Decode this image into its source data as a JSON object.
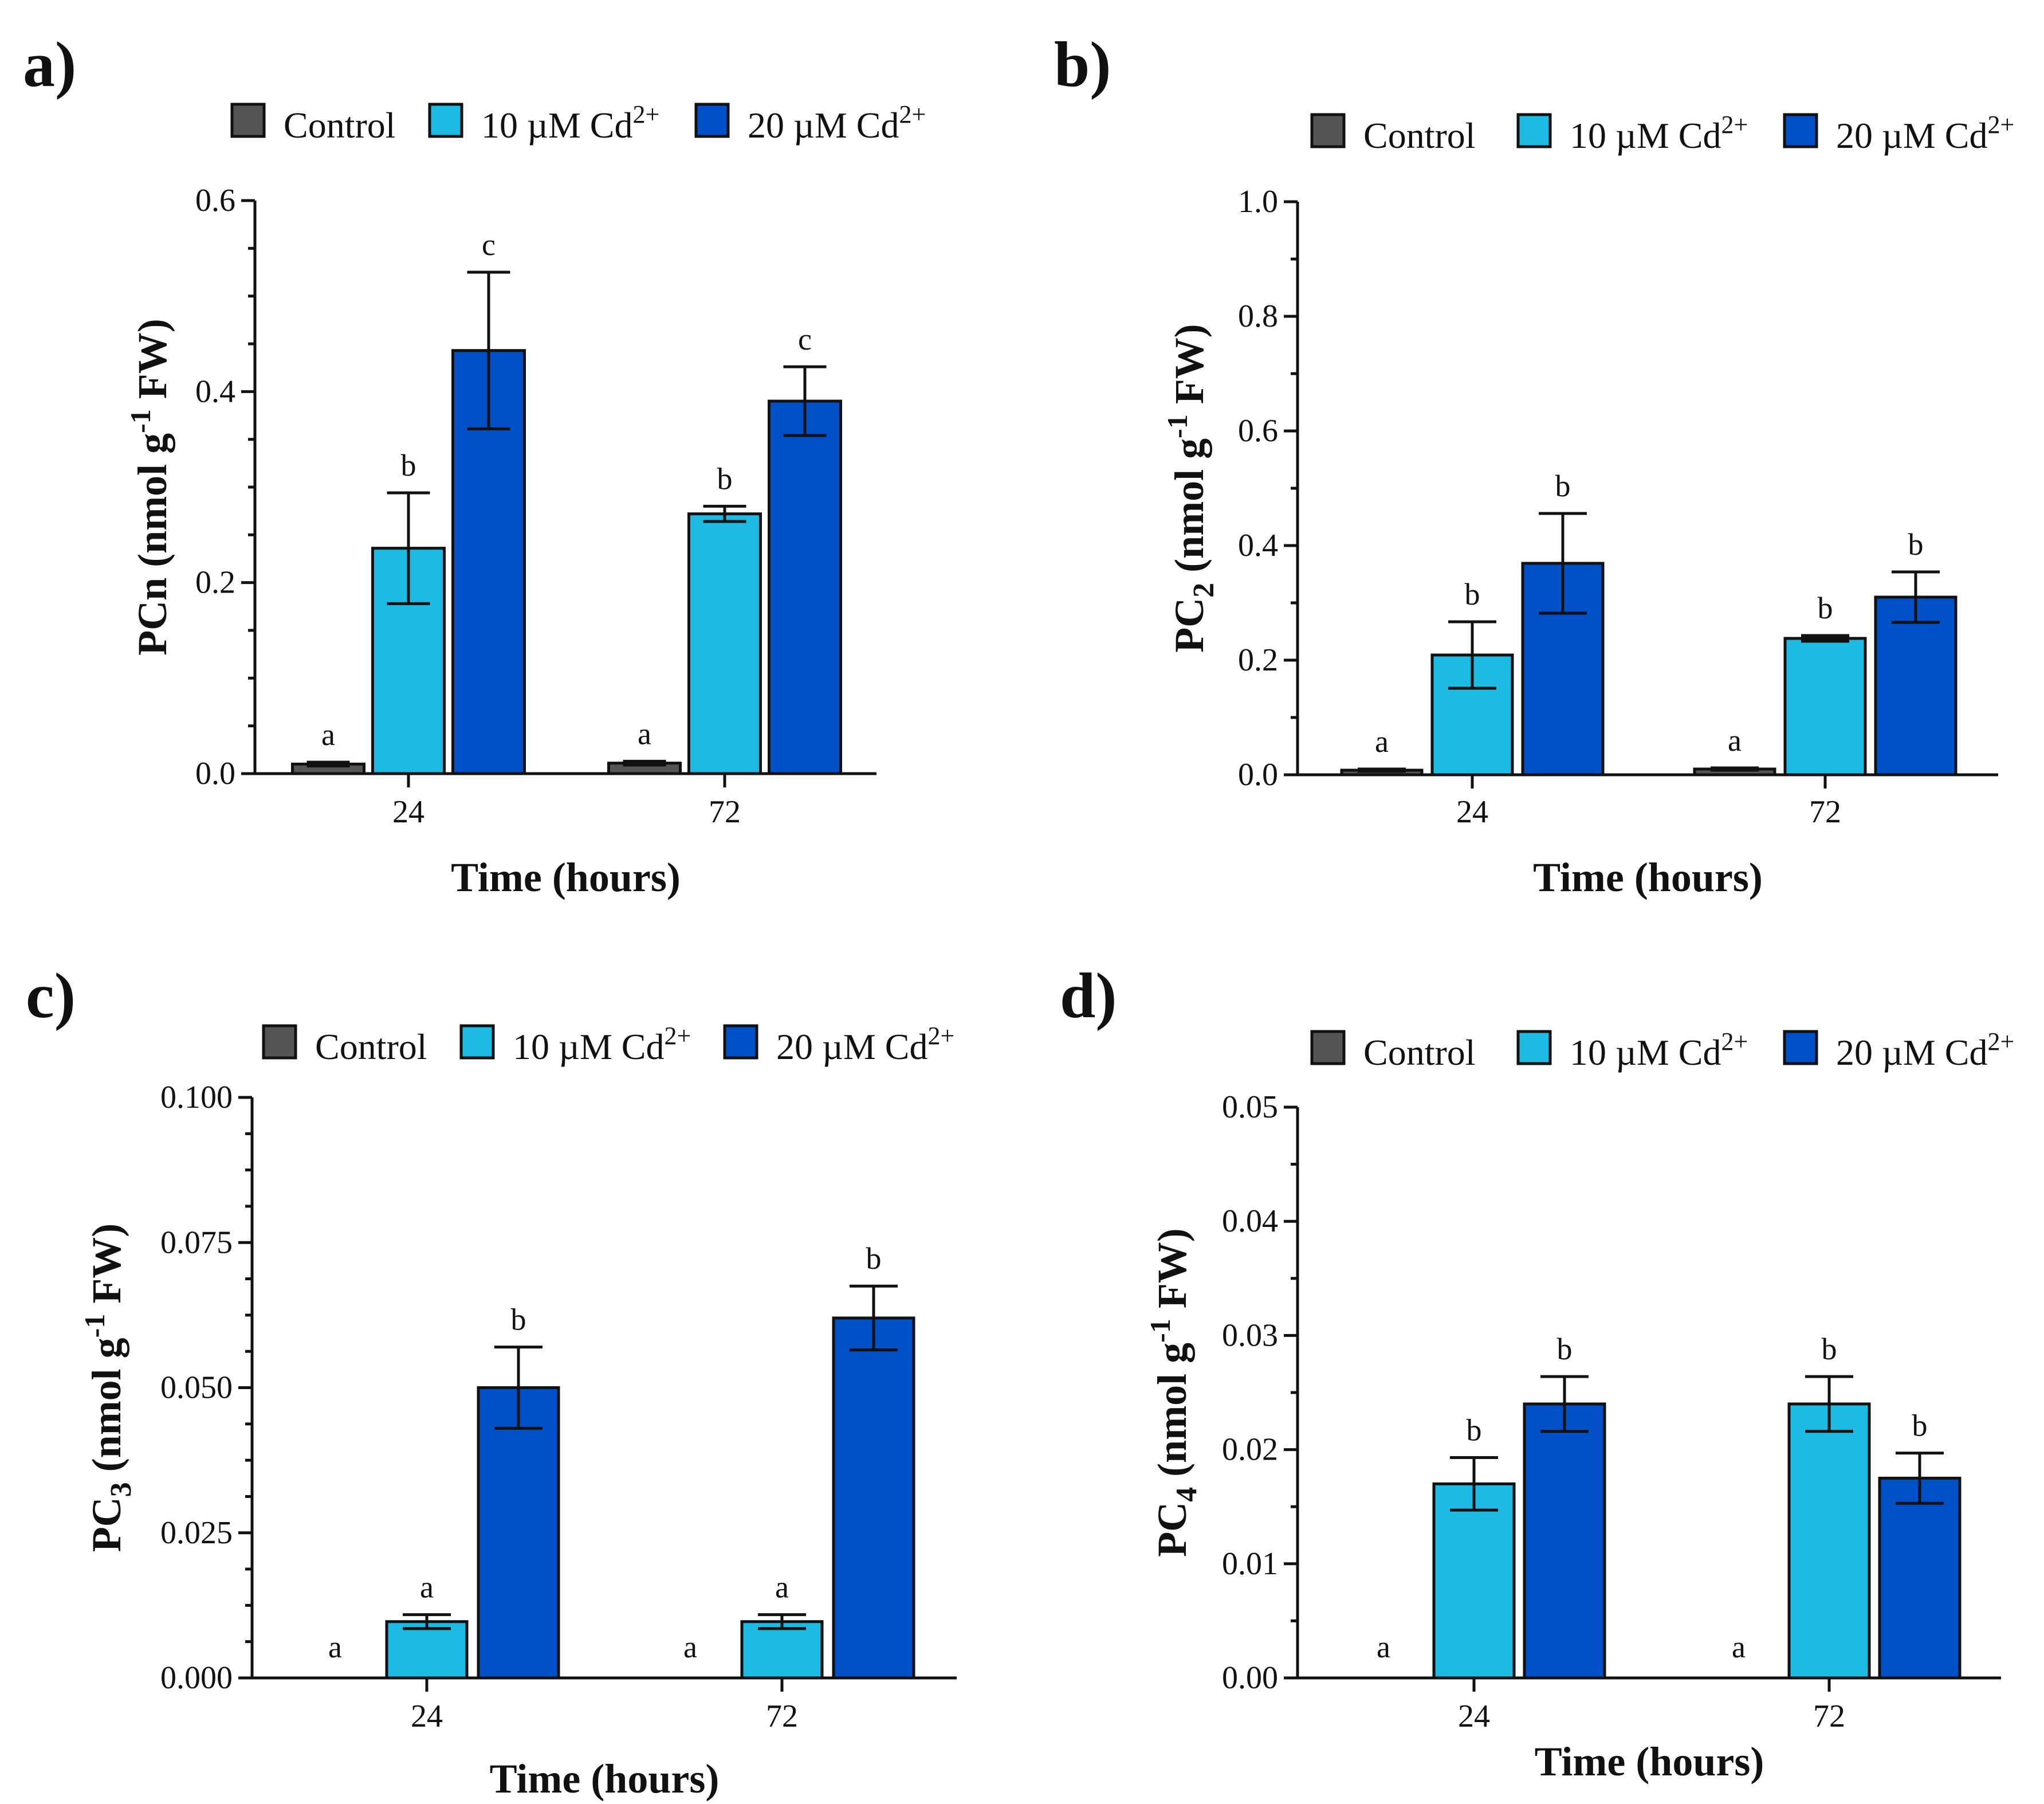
{
  "colors": {
    "control": "#555555",
    "cd10": "#1dbbe3",
    "cd20": "#0050c8"
  },
  "chart_data": [
    {
      "id": "a",
      "panel_label": "a)",
      "type": "bar",
      "title": "",
      "legend": [
        "Control",
        "10 µM Cd",
        "20 µM Cd"
      ],
      "legend_superscript": "2+",
      "categories": [
        "24",
        "72"
      ],
      "xlabel": "Time (hours)",
      "ylabel": "PCn (nmol g",
      "ylabel_superscript": "-1",
      "ylabel_tail": " FW)",
      "ylabel_subscript": "",
      "ylim": [
        0,
        0.6
      ],
      "yticks": [
        0.0,
        0.2,
        0.4,
        0.6
      ],
      "ytick_labels": [
        "0.0",
        "0.2",
        "0.4",
        "0.6"
      ],
      "series": [
        {
          "name": "Control",
          "values": [
            0.01,
            0.011
          ],
          "errors": [
            0.002,
            0.002
          ],
          "letters": [
            "a",
            "a"
          ]
        },
        {
          "name": "10 µM Cd2+",
          "values": [
            0.236,
            0.272
          ],
          "errors": [
            0.058,
            0.008
          ],
          "letters": [
            "b",
            "b"
          ]
        },
        {
          "name": "20 µM Cd2+",
          "values": [
            0.443,
            0.39
          ],
          "errors": [
            0.082,
            0.036
          ],
          "letters": [
            "c",
            "c"
          ]
        }
      ]
    },
    {
      "id": "b",
      "panel_label": "b)",
      "type": "bar",
      "title": "",
      "legend": [
        "Control",
        "10 µM Cd",
        "20 µM Cd"
      ],
      "legend_superscript": "2+",
      "categories": [
        "24",
        "72"
      ],
      "xlabel": "Time (hours)",
      "ylabel": "PC",
      "ylabel_subscript": "2",
      "ylabel_mid": " (nmol g",
      "ylabel_superscript": "-1",
      "ylabel_tail": " FW)",
      "ylim": [
        0,
        1.0
      ],
      "yticks": [
        0.0,
        0.2,
        0.4,
        0.6,
        0.8,
        1.0
      ],
      "ytick_labels": [
        "0.0",
        "0.2",
        "0.4",
        "0.6",
        "0.8",
        "1.0"
      ],
      "series": [
        {
          "name": "Control",
          "values": [
            0.008,
            0.01
          ],
          "errors": [
            0.002,
            0.002
          ],
          "letters": [
            "a",
            "a"
          ]
        },
        {
          "name": "10 µM Cd2+",
          "values": [
            0.209,
            0.238
          ],
          "errors": [
            0.058,
            0.005
          ],
          "letters": [
            "b",
            "b"
          ]
        },
        {
          "name": "20 µM Cd2+",
          "values": [
            0.369,
            0.31
          ],
          "errors": [
            0.087,
            0.044
          ],
          "letters": [
            "b",
            "b"
          ]
        }
      ]
    },
    {
      "id": "c",
      "panel_label": "c)",
      "type": "bar",
      "title": "",
      "legend": [
        "Control",
        "10 µM Cd",
        "20 µM Cd"
      ],
      "legend_superscript": "2+",
      "categories": [
        "24",
        "72"
      ],
      "xlabel": "Time (hours)",
      "ylabel": "PC",
      "ylabel_subscript": "3",
      "ylabel_mid": " (nmol g",
      "ylabel_superscript": "-1",
      "ylabel_tail": " FW)",
      "ylim": [
        0,
        0.1
      ],
      "yticks": [
        0.0,
        0.025,
        0.05,
        0.075,
        0.1
      ],
      "ytick_labels": [
        "0.000",
        "0.025",
        "0.050",
        "0.075",
        "0.100"
      ],
      "series": [
        {
          "name": "Control",
          "values": [
            0,
            0
          ],
          "errors": [
            0,
            0
          ],
          "letters": [
            "a",
            "a"
          ]
        },
        {
          "name": "10 µM Cd2+",
          "values": [
            0.0097,
            0.0097
          ],
          "errors": [
            0.0012,
            0.0012
          ],
          "letters": [
            "a",
            "a"
          ]
        },
        {
          "name": "20 µM Cd2+",
          "values": [
            0.05,
            0.062
          ],
          "errors": [
            0.007,
            0.0055
          ],
          "letters": [
            "b",
            "b"
          ]
        }
      ]
    },
    {
      "id": "d",
      "panel_label": "d)",
      "type": "bar",
      "title": "",
      "legend": [
        "Control",
        "10 µM Cd",
        "20 µM Cd"
      ],
      "legend_superscript": "2+",
      "categories": [
        "24",
        "72"
      ],
      "xlabel": "Time (hours)",
      "ylabel": "PC",
      "ylabel_subscript": "4",
      "ylabel_mid": " (nmol g",
      "ylabel_superscript": "-1",
      "ylabel_tail": " FW)",
      "ylim": [
        0,
        0.05
      ],
      "yticks": [
        0.0,
        0.01,
        0.02,
        0.03,
        0.04,
        0.05
      ],
      "ytick_labels": [
        "0.00",
        "0.01",
        "0.02",
        "0.03",
        "0.04",
        "0.05"
      ],
      "series": [
        {
          "name": "Control",
          "values": [
            0,
            0
          ],
          "errors": [
            0,
            0
          ],
          "letters": [
            "a",
            "a"
          ]
        },
        {
          "name": "10 µM Cd2+",
          "values": [
            0.017,
            0.024
          ],
          "errors": [
            0.0023,
            0.0024
          ],
          "letters": [
            "b",
            "b"
          ]
        },
        {
          "name": "20 µM Cd2+",
          "values": [
            0.024,
            0.0175
          ],
          "errors": [
            0.0024,
            0.0022
          ],
          "letters": [
            "b",
            "b"
          ]
        }
      ]
    }
  ]
}
